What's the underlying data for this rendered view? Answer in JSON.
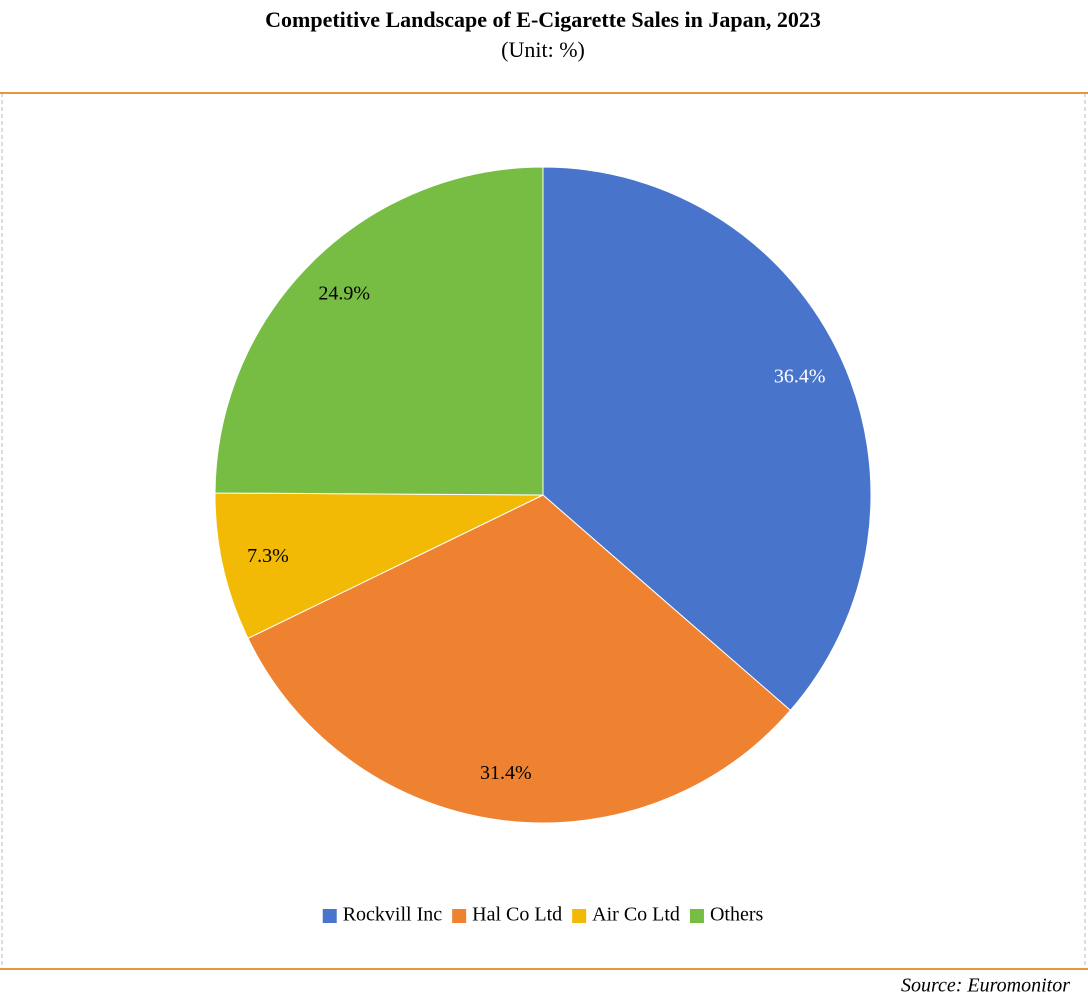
{
  "chart_data": {
    "type": "pie",
    "title": "Competitive Landscape of E-Cigarette Sales in Japan, 2023",
    "subtitle": "(Unit: %)",
    "source": "Source: Euromonitor",
    "categories": [
      "Rockvill Inc",
      "Hal Co Ltd",
      "Air Co Ltd",
      "Others"
    ],
    "values": [
      36.4,
      31.4,
      7.3,
      24.9
    ],
    "value_labels": [
      "36.4%",
      "31.4%",
      "7.3%",
      "24.9%"
    ],
    "colors": [
      "#4874cb",
      "#ee8231",
      "#f2ba05",
      "#77bc43"
    ],
    "value_label_colors": [
      "#ffffff",
      "#000000",
      "#000000",
      "#000000"
    ],
    "legend": "bottom"
  }
}
